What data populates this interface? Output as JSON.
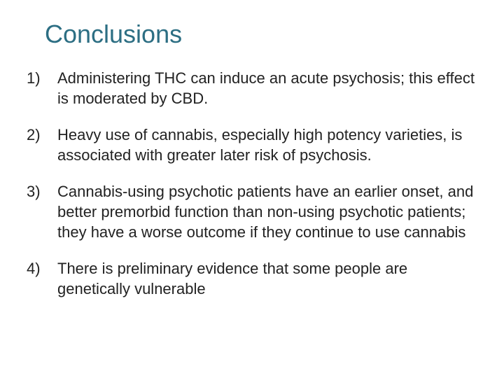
{
  "title": "Conclusions",
  "title_color": "#2c6e83",
  "title_fontsize": 36,
  "body_fontsize": 22,
  "text_color": "#222222",
  "background_color": "#ffffff",
  "items": [
    {
      "marker": "1)",
      "text": "Administering THC can induce an acute psychosis; this effect is moderated by CBD."
    },
    {
      "marker": "2)",
      "text": "Heavy use of cannabis, especially high potency varieties, is associated with greater later risk of psychosis."
    },
    {
      "marker": "3)",
      "text": "Cannabis-using psychotic patients have an earlier onset, and better premorbid function than non-using psychotic patients; they have a worse outcome if they continue to use cannabis"
    },
    {
      "marker": "4)",
      "text": "There is preliminary evidence that some people are genetically vulnerable"
    }
  ]
}
